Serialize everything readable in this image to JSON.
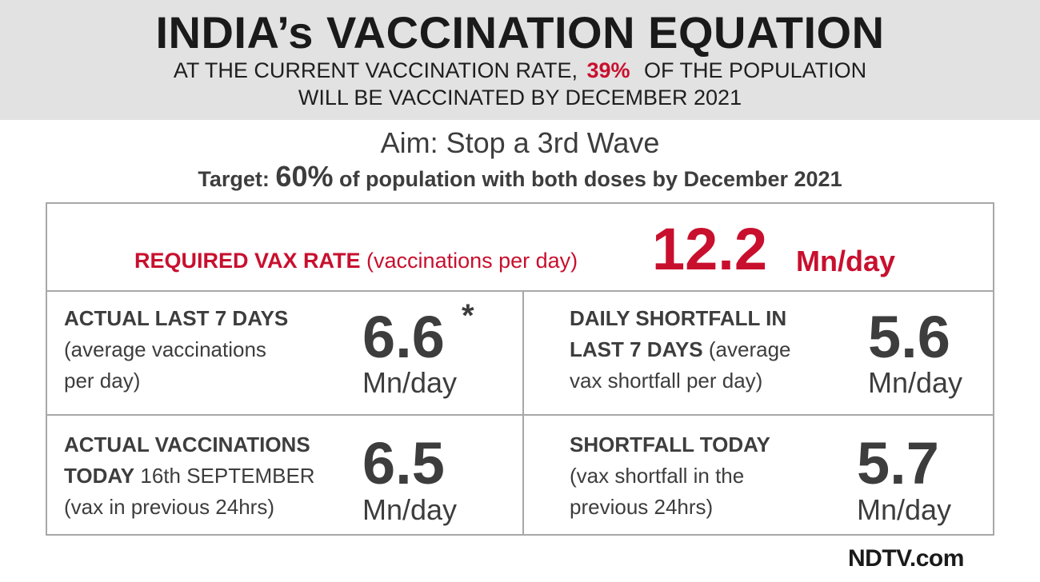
{
  "header": {
    "title": "INDIA’s VACCINATION EQUATION",
    "line1_before": "AT THE CURRENT VACCINATION RATE,",
    "line1_highlight": "39%",
    "line1_after": "OF THE POPULATION",
    "line2": "WILL BE VACCINATED BY DECEMBER 2021"
  },
  "aim": "Aim: Stop a 3rd Wave",
  "target": {
    "prefix": "Target:",
    "value": "60%",
    "suffix": "of population with both doses by December 2021"
  },
  "required": {
    "label_bold": "REQUIRED VAX RATE",
    "label_rest": "(vaccinations per day)",
    "value": "12.2",
    "unit": "Mn/day"
  },
  "cells": {
    "last7": {
      "title": "ACTUAL LAST 7 DAYS",
      "line2": "(average vaccinations",
      "line3": "per day)",
      "value": "6.6",
      "star": "*",
      "unit": "Mn/day"
    },
    "shortfall7": {
      "title1": "DAILY SHORTFALL IN",
      "title2": "LAST 7 DAYS",
      "title2_rest": "(average",
      "line3": "vax shortfall per day)",
      "value": "5.6",
      "unit": "Mn/day"
    },
    "today": {
      "title1": "ACTUAL VACCINATIONS",
      "title2": "TODAY",
      "date": "16th SEPTEMBER",
      "line3": "(vax in previous 24hrs)",
      "value": "6.5",
      "unit": "Mn/day"
    },
    "shortfall_today": {
      "title": "SHORTFALL TODAY",
      "line2": "(vax shortfall in the",
      "line3": "previous 24hrs)",
      "value": "5.7",
      "unit": "Mn/day"
    }
  },
  "logo": "NDTV.com",
  "colors": {
    "accent_red": "#c8102e",
    "header_bg": "#e2e2e2",
    "text": "#3d3d3d",
    "border": "#a8a8a8"
  }
}
